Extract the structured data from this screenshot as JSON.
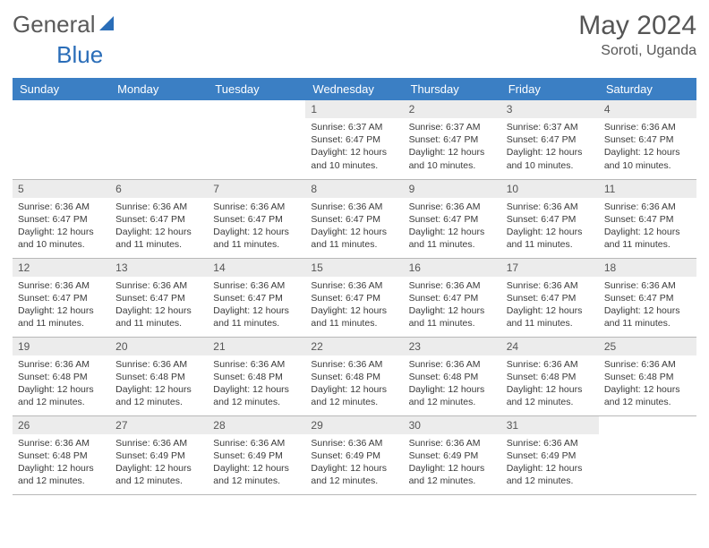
{
  "logo": {
    "text1": "General",
    "text2": "Blue"
  },
  "title": "May 2024",
  "location": "Soroti, Uganda",
  "colors": {
    "header_bg": "#3b7fc4",
    "header_text": "#ffffff",
    "daynum_bg": "#ececec",
    "border": "#b8b8b8",
    "logo_blue": "#2a6db8"
  },
  "day_names": [
    "Sunday",
    "Monday",
    "Tuesday",
    "Wednesday",
    "Thursday",
    "Friday",
    "Saturday"
  ],
  "weeks": [
    [
      null,
      null,
      null,
      {
        "n": "1",
        "sunrise": "6:37 AM",
        "sunset": "6:47 PM",
        "daylight": "12 hours and 10 minutes."
      },
      {
        "n": "2",
        "sunrise": "6:37 AM",
        "sunset": "6:47 PM",
        "daylight": "12 hours and 10 minutes."
      },
      {
        "n": "3",
        "sunrise": "6:37 AM",
        "sunset": "6:47 PM",
        "daylight": "12 hours and 10 minutes."
      },
      {
        "n": "4",
        "sunrise": "6:36 AM",
        "sunset": "6:47 PM",
        "daylight": "12 hours and 10 minutes."
      }
    ],
    [
      {
        "n": "5",
        "sunrise": "6:36 AM",
        "sunset": "6:47 PM",
        "daylight": "12 hours and 10 minutes."
      },
      {
        "n": "6",
        "sunrise": "6:36 AM",
        "sunset": "6:47 PM",
        "daylight": "12 hours and 11 minutes."
      },
      {
        "n": "7",
        "sunrise": "6:36 AM",
        "sunset": "6:47 PM",
        "daylight": "12 hours and 11 minutes."
      },
      {
        "n": "8",
        "sunrise": "6:36 AM",
        "sunset": "6:47 PM",
        "daylight": "12 hours and 11 minutes."
      },
      {
        "n": "9",
        "sunrise": "6:36 AM",
        "sunset": "6:47 PM",
        "daylight": "12 hours and 11 minutes."
      },
      {
        "n": "10",
        "sunrise": "6:36 AM",
        "sunset": "6:47 PM",
        "daylight": "12 hours and 11 minutes."
      },
      {
        "n": "11",
        "sunrise": "6:36 AM",
        "sunset": "6:47 PM",
        "daylight": "12 hours and 11 minutes."
      }
    ],
    [
      {
        "n": "12",
        "sunrise": "6:36 AM",
        "sunset": "6:47 PM",
        "daylight": "12 hours and 11 minutes."
      },
      {
        "n": "13",
        "sunrise": "6:36 AM",
        "sunset": "6:47 PM",
        "daylight": "12 hours and 11 minutes."
      },
      {
        "n": "14",
        "sunrise": "6:36 AM",
        "sunset": "6:47 PM",
        "daylight": "12 hours and 11 minutes."
      },
      {
        "n": "15",
        "sunrise": "6:36 AM",
        "sunset": "6:47 PM",
        "daylight": "12 hours and 11 minutes."
      },
      {
        "n": "16",
        "sunrise": "6:36 AM",
        "sunset": "6:47 PM",
        "daylight": "12 hours and 11 minutes."
      },
      {
        "n": "17",
        "sunrise": "6:36 AM",
        "sunset": "6:47 PM",
        "daylight": "12 hours and 11 minutes."
      },
      {
        "n": "18",
        "sunrise": "6:36 AM",
        "sunset": "6:47 PM",
        "daylight": "12 hours and 11 minutes."
      }
    ],
    [
      {
        "n": "19",
        "sunrise": "6:36 AM",
        "sunset": "6:48 PM",
        "daylight": "12 hours and 12 minutes."
      },
      {
        "n": "20",
        "sunrise": "6:36 AM",
        "sunset": "6:48 PM",
        "daylight": "12 hours and 12 minutes."
      },
      {
        "n": "21",
        "sunrise": "6:36 AM",
        "sunset": "6:48 PM",
        "daylight": "12 hours and 12 minutes."
      },
      {
        "n": "22",
        "sunrise": "6:36 AM",
        "sunset": "6:48 PM",
        "daylight": "12 hours and 12 minutes."
      },
      {
        "n": "23",
        "sunrise": "6:36 AM",
        "sunset": "6:48 PM",
        "daylight": "12 hours and 12 minutes."
      },
      {
        "n": "24",
        "sunrise": "6:36 AM",
        "sunset": "6:48 PM",
        "daylight": "12 hours and 12 minutes."
      },
      {
        "n": "25",
        "sunrise": "6:36 AM",
        "sunset": "6:48 PM",
        "daylight": "12 hours and 12 minutes."
      }
    ],
    [
      {
        "n": "26",
        "sunrise": "6:36 AM",
        "sunset": "6:48 PM",
        "daylight": "12 hours and 12 minutes."
      },
      {
        "n": "27",
        "sunrise": "6:36 AM",
        "sunset": "6:49 PM",
        "daylight": "12 hours and 12 minutes."
      },
      {
        "n": "28",
        "sunrise": "6:36 AM",
        "sunset": "6:49 PM",
        "daylight": "12 hours and 12 minutes."
      },
      {
        "n": "29",
        "sunrise": "6:36 AM",
        "sunset": "6:49 PM",
        "daylight": "12 hours and 12 minutes."
      },
      {
        "n": "30",
        "sunrise": "6:36 AM",
        "sunset": "6:49 PM",
        "daylight": "12 hours and 12 minutes."
      },
      {
        "n": "31",
        "sunrise": "6:36 AM",
        "sunset": "6:49 PM",
        "daylight": "12 hours and 12 minutes."
      },
      null
    ]
  ]
}
